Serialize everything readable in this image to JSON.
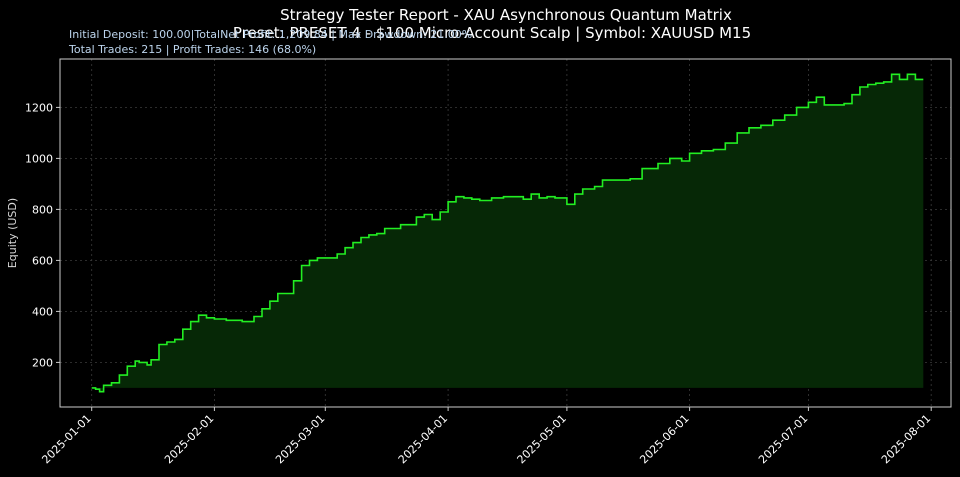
{
  "chart_data": {
    "type": "line",
    "title": "Strategy Tester Report - XAU Asynchronous Quantum Matrix",
    "subtitle": "Preset: PRESET 4 - $100 Micro-Account Scalp | Symbol: XAUUSD M15",
    "info_line1": "Initial Deposit: 100.00|TotalNet Profit: 1,209.84 | Max Drawdown: 21.00%",
    "info_line2": "Total Trades: 215 | Profit Trades: 146 (68.0%)",
    "xlabel": "",
    "ylabel": "Equity (USD)",
    "ylim": [
      25,
      1390
    ],
    "xlim": [
      "2024-12-24",
      "2025-08-06"
    ],
    "yticks": [
      200,
      400,
      600,
      800,
      1000,
      1200
    ],
    "xticks": [
      "2025-01-01",
      "2025-02-01",
      "2025-03-01",
      "2025-04-01",
      "2025-05-01",
      "2025-06-01",
      "2025-07-01",
      "2025-08-01"
    ],
    "grid": true,
    "fill_baseline": 100,
    "colors": {
      "line": "#22ee22",
      "fill": "#062806",
      "axes_bg": "#000000",
      "spine": "#cccccc",
      "grid": "#3a3a3a"
    },
    "series": [
      {
        "x": [
          "2025-01-01",
          "2025-01-02",
          "2025-01-03",
          "2025-01-04",
          "2025-01-06",
          "2025-01-08",
          "2025-01-10",
          "2025-01-12",
          "2025-01-13",
          "2025-01-15",
          "2025-01-16",
          "2025-01-18",
          "2025-01-20",
          "2025-01-22",
          "2025-01-24",
          "2025-01-26",
          "2025-01-28",
          "2025-01-30",
          "2025-02-01",
          "2025-02-04",
          "2025-02-08",
          "2025-02-11",
          "2025-02-13",
          "2025-02-15",
          "2025-02-17",
          "2025-02-19",
          "2025-02-21",
          "2025-02-23",
          "2025-02-25",
          "2025-02-27",
          "2025-03-01",
          "2025-03-04",
          "2025-03-06",
          "2025-03-08",
          "2025-03-10",
          "2025-03-12",
          "2025-03-14",
          "2025-03-16",
          "2025-03-18",
          "2025-03-20",
          "2025-03-24",
          "2025-03-26",
          "2025-03-28",
          "2025-03-30",
          "2025-04-01",
          "2025-04-03",
          "2025-04-05",
          "2025-04-07",
          "2025-04-09",
          "2025-04-12",
          "2025-04-15",
          "2025-04-18",
          "2025-04-20",
          "2025-04-22",
          "2025-04-24",
          "2025-04-26",
          "2025-04-28",
          "2025-05-01",
          "2025-05-03",
          "2025-05-05",
          "2025-05-08",
          "2025-05-10",
          "2025-05-13",
          "2025-05-17",
          "2025-05-20",
          "2025-05-24",
          "2025-05-27",
          "2025-05-30",
          "2025-06-01",
          "2025-06-04",
          "2025-06-07",
          "2025-06-10",
          "2025-06-13",
          "2025-06-16",
          "2025-06-19",
          "2025-06-22",
          "2025-06-25",
          "2025-06-28",
          "2025-07-01",
          "2025-07-03",
          "2025-07-05",
          "2025-07-07",
          "2025-07-10",
          "2025-07-12",
          "2025-07-14",
          "2025-07-16",
          "2025-07-18",
          "2025-07-20",
          "2025-07-22",
          "2025-07-24",
          "2025-07-26",
          "2025-07-28"
        ],
        "values": [
          100,
          95,
          85,
          110,
          120,
          150,
          185,
          205,
          200,
          190,
          210,
          270,
          280,
          290,
          330,
          360,
          385,
          375,
          370,
          365,
          360,
          380,
          410,
          440,
          470,
          470,
          520,
          580,
          600,
          610,
          610,
          625,
          650,
          670,
          690,
          700,
          705,
          725,
          725,
          740,
          770,
          780,
          760,
          790,
          830,
          850,
          845,
          840,
          835,
          845,
          850,
          850,
          840,
          860,
          845,
          850,
          845,
          820,
          860,
          880,
          890,
          915,
          915,
          920,
          960,
          980,
          1000,
          990,
          1020,
          1030,
          1035,
          1060,
          1100,
          1120,
          1130,
          1150,
          1170,
          1200,
          1220,
          1240,
          1210,
          1210,
          1215,
          1250,
          1280,
          1290,
          1295,
          1300,
          1330,
          1310,
          1330,
          1310
        ]
      }
    ]
  }
}
